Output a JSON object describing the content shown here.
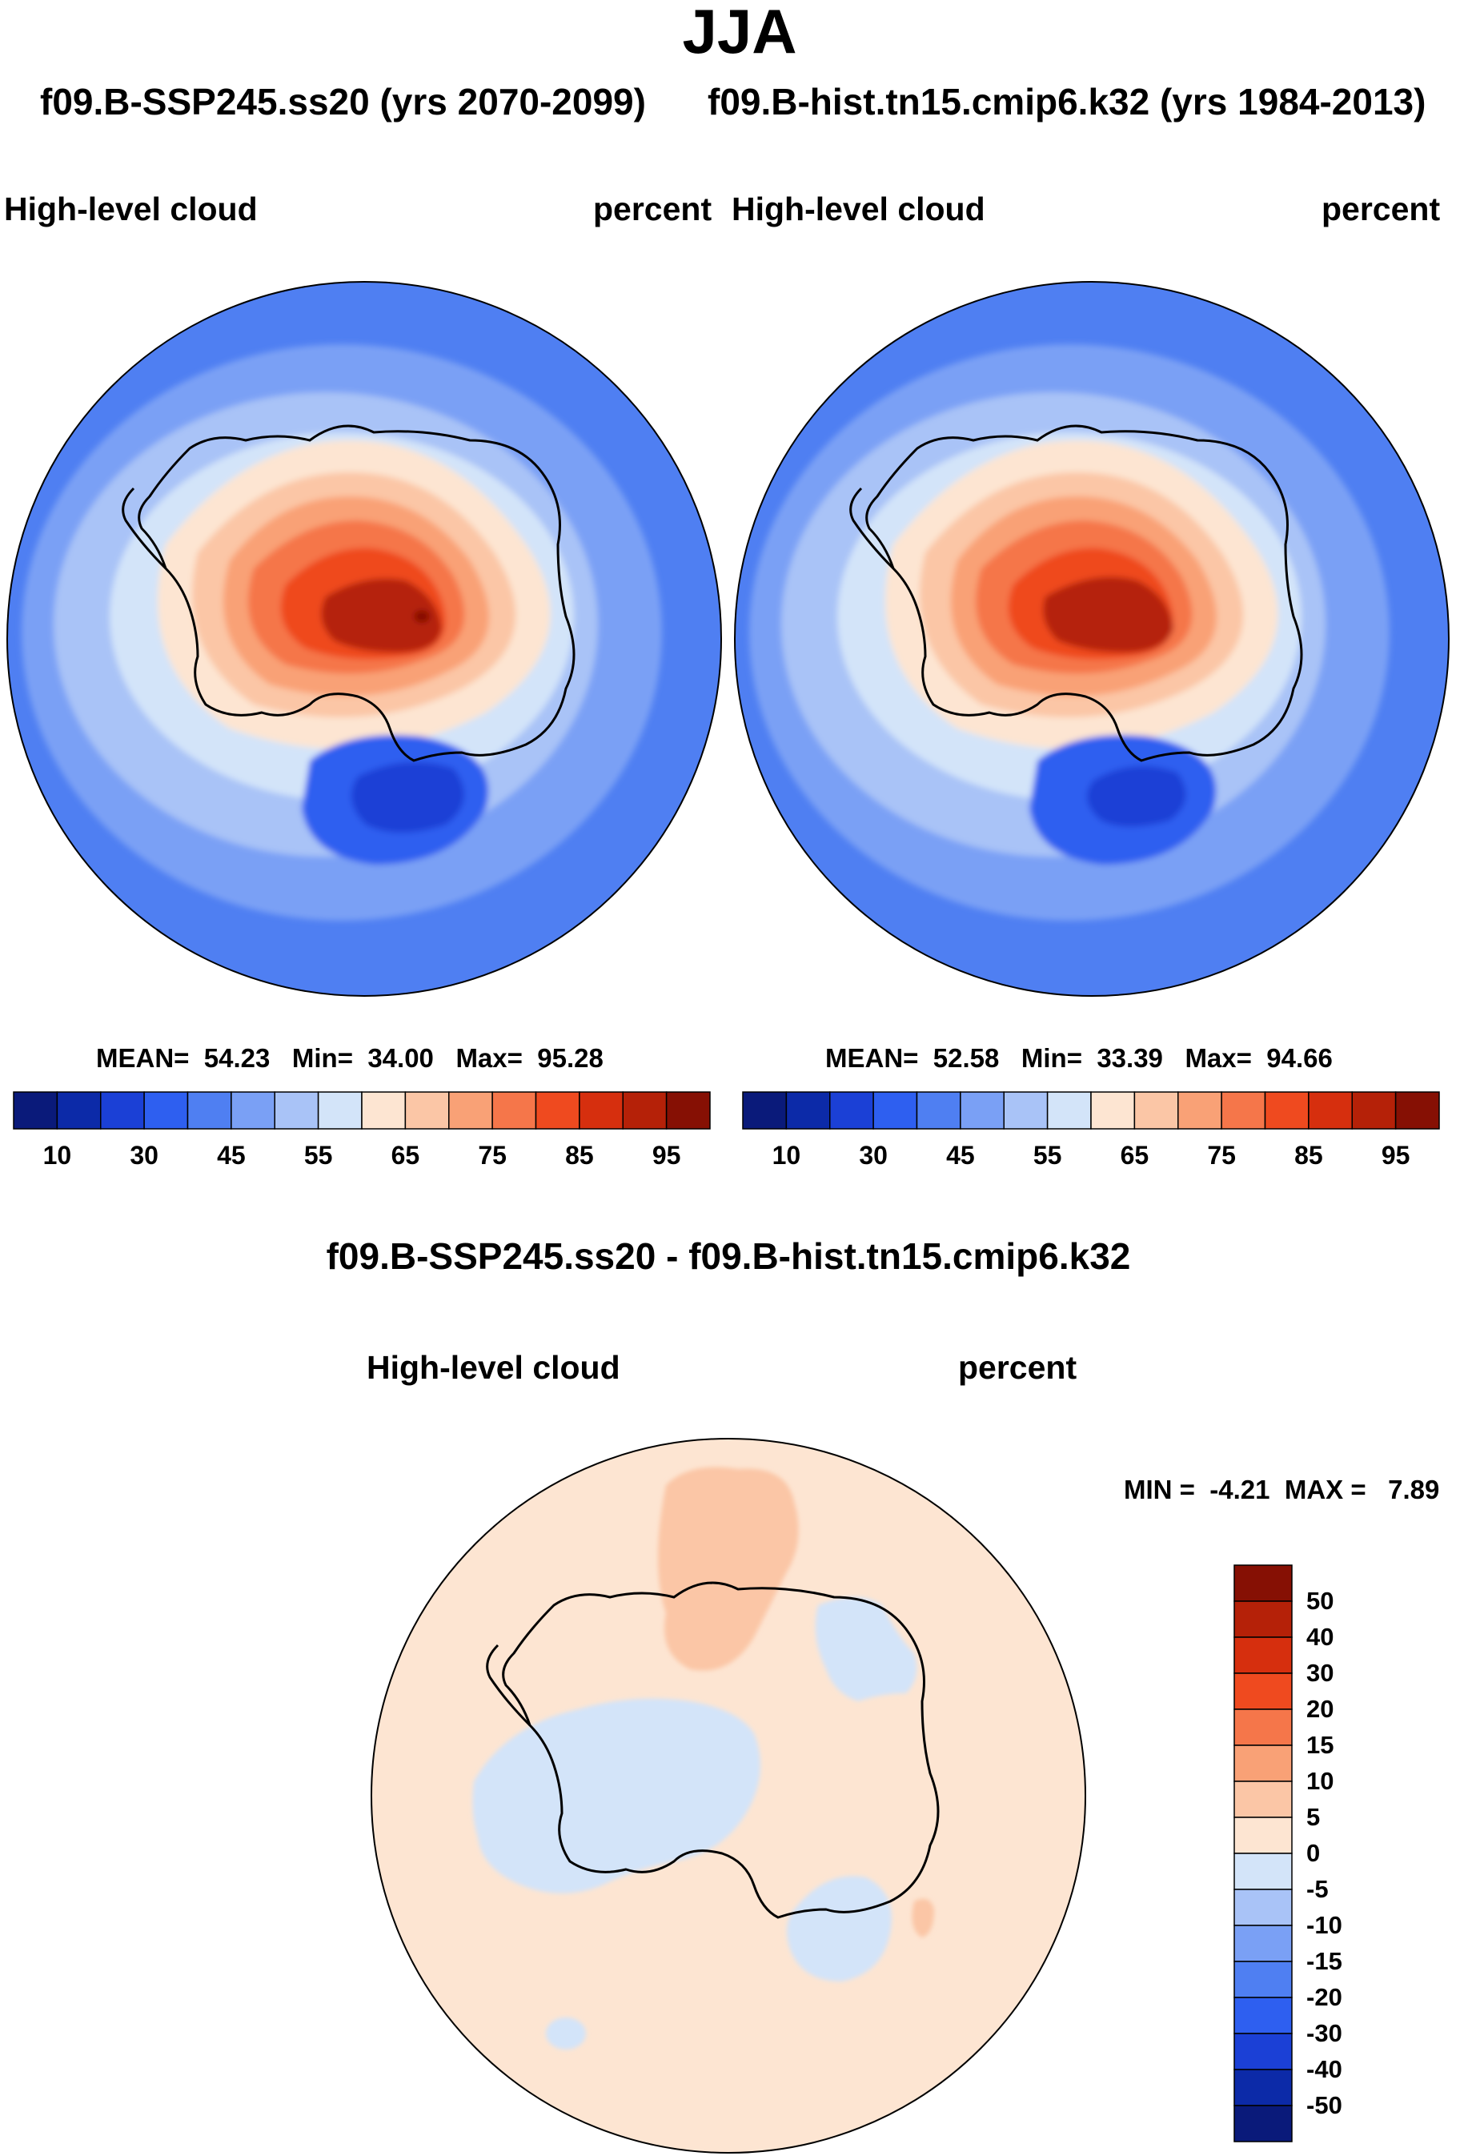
{
  "title": "JJA",
  "cases": {
    "case1": "f09.B-SSP245.ss20 (yrs 2070-2099)",
    "case2": "f09.B-hist.tn15.cmip6.k32 (yrs 1984-2013)"
  },
  "panels": [
    {
      "variable": "High-level cloud",
      "units": "percent",
      "stats": {
        "mean_label": "MEAN=",
        "mean": "54.23",
        "min_label": "Min=",
        "min": "34.00",
        "max_label": "Max=",
        "max": "95.28"
      }
    },
    {
      "variable": "High-level cloud",
      "units": "percent",
      "stats": {
        "mean_label": "MEAN=",
        "mean": "52.58",
        "min_label": "Min=",
        "min": "33.39",
        "max_label": "Max=",
        "max": "94.66"
      }
    }
  ],
  "diff_panel": {
    "title": "f09.B-SSP245.ss20 - f09.B-hist.tn15.cmip6.k32",
    "variable": "High-level cloud",
    "units": "percent",
    "min_label": "MIN =",
    "min": "-4.21",
    "max_label": "MAX =",
    "max": "7.89"
  },
  "colorbar_main": {
    "colors": [
      "#0a1a7a",
      "#0c2aa8",
      "#1b40d6",
      "#2e5ff0",
      "#4f7ff2",
      "#7aa0f5",
      "#a9c3f7",
      "#d3e4f9",
      "#fde5d2",
      "#fbc6a6",
      "#f9a176",
      "#f5764a",
      "#ef4a1f",
      "#d62f0e",
      "#b52108",
      "#861004"
    ],
    "labels": [
      "10",
      "30",
      "45",
      "55",
      "65",
      "75",
      "85",
      "95"
    ]
  },
  "colorbar_diff": {
    "colors": [
      "#861004",
      "#b52108",
      "#d62f0e",
      "#ef4a1f",
      "#f5764a",
      "#f9a176",
      "#fbc6a6",
      "#fde5d2",
      "#d3e4f9",
      "#a9c3f7",
      "#7aa0f5",
      "#4f7ff2",
      "#2e5ff0",
      "#1b40d6",
      "#0c2aa8",
      "#0a1a7a"
    ],
    "labels": [
      "50",
      "40",
      "30",
      "20",
      "15",
      "10",
      "5",
      "0",
      "-5",
      "-10",
      "-15",
      "-20",
      "-30",
      "-40",
      "-50"
    ]
  }
}
